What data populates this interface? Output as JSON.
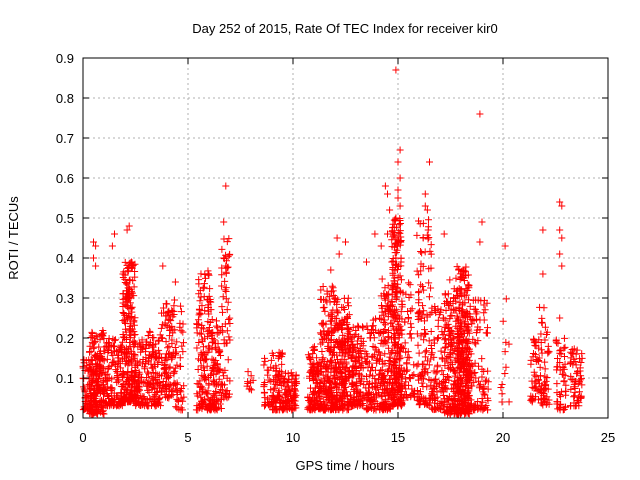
{
  "chart_data": {
    "type": "scatter",
    "title": "Day 252 of 2015, Rate Of TEC Index for receiver kir0",
    "xlabel": "GPS time / hours",
    "ylabel": "ROTI / TECUs",
    "xlim": [
      0,
      25
    ],
    "ylim": [
      0,
      0.9
    ],
    "xticks": [
      0,
      5,
      10,
      15,
      20,
      25
    ],
    "yticks": [
      0,
      0.1,
      0.2,
      0.3,
      0.4,
      0.5,
      0.6,
      0.7,
      0.8,
      0.9
    ],
    "grid": true,
    "marker": "+",
    "color": "#ff0000",
    "clusters": [
      {
        "x": [
          0.0,
          0.3
        ],
        "y": [
          0.02,
          0.15
        ],
        "n": 40
      },
      {
        "x": [
          0.3,
          1.0
        ],
        "y": [
          0.01,
          0.22
        ],
        "n": 220
      },
      {
        "x": [
          1.0,
          1.9
        ],
        "y": [
          0.03,
          0.2
        ],
        "n": 140
      },
      {
        "x": [
          1.9,
          2.5
        ],
        "y": [
          0.04,
          0.4
        ],
        "n": 240
      },
      {
        "x": [
          2.5,
          3.1
        ],
        "y": [
          0.03,
          0.2
        ],
        "n": 90
      },
      {
        "x": [
          3.1,
          3.7
        ],
        "y": [
          0.03,
          0.22
        ],
        "n": 100
      },
      {
        "x": [
          3.7,
          4.4
        ],
        "y": [
          0.05,
          0.3
        ],
        "n": 110
      },
      {
        "x": [
          4.4,
          4.8
        ],
        "y": [
          0.02,
          0.3
        ],
        "n": 40
      },
      {
        "x": [
          5.4,
          6.1
        ],
        "y": [
          0.02,
          0.37
        ],
        "n": 150
      },
      {
        "x": [
          6.1,
          6.6
        ],
        "y": [
          0.02,
          0.25
        ],
        "n": 90
      },
      {
        "x": [
          6.6,
          7.0
        ],
        "y": [
          0.05,
          0.45
        ],
        "n": 60
      },
      {
        "x": [
          7.8,
          8.1
        ],
        "y": [
          0.07,
          0.12
        ],
        "n": 10
      },
      {
        "x": [
          8.6,
          9.0
        ],
        "y": [
          0.03,
          0.15
        ],
        "n": 30
      },
      {
        "x": [
          9.0,
          9.5
        ],
        "y": [
          0.02,
          0.18
        ],
        "n": 80
      },
      {
        "x": [
          9.5,
          10.2
        ],
        "y": [
          0.02,
          0.12
        ],
        "n": 90
      },
      {
        "x": [
          10.7,
          11.3
        ],
        "y": [
          0.02,
          0.18
        ],
        "n": 120
      },
      {
        "x": [
          11.3,
          12.0
        ],
        "y": [
          0.02,
          0.33
        ],
        "n": 200
      },
      {
        "x": [
          12.0,
          12.7
        ],
        "y": [
          0.02,
          0.3
        ],
        "n": 220
      },
      {
        "x": [
          12.7,
          13.4
        ],
        "y": [
          0.03,
          0.23
        ],
        "n": 140
      },
      {
        "x": [
          13.4,
          14.2
        ],
        "y": [
          0.02,
          0.25
        ],
        "n": 120
      },
      {
        "x": [
          14.2,
          14.7
        ],
        "y": [
          0.02,
          0.35
        ],
        "n": 130
      },
      {
        "x": [
          14.7,
          15.2
        ],
        "y": [
          0.03,
          0.5
        ],
        "n": 260
      },
      {
        "x": [
          15.2,
          15.8
        ],
        "y": [
          0.05,
          0.35
        ],
        "n": 60
      },
      {
        "x": [
          15.9,
          16.6
        ],
        "y": [
          0.03,
          0.5
        ],
        "n": 120
      },
      {
        "x": [
          16.6,
          17.2
        ],
        "y": [
          0.02,
          0.28
        ],
        "n": 80
      },
      {
        "x": [
          17.2,
          17.8
        ],
        "y": [
          0.01,
          0.35
        ],
        "n": 150
      },
      {
        "x": [
          17.8,
          18.4
        ],
        "y": [
          0.01,
          0.38
        ],
        "n": 320
      },
      {
        "x": [
          18.4,
          18.8
        ],
        "y": [
          0.02,
          0.3
        ],
        "n": 60
      },
      {
        "x": [
          18.8,
          19.3
        ],
        "y": [
          0.02,
          0.3
        ],
        "n": 50
      },
      {
        "x": [
          19.9,
          20.3
        ],
        "y": [
          0.04,
          0.3
        ],
        "n": 12
      },
      {
        "x": [
          21.3,
          21.7
        ],
        "y": [
          0.04,
          0.2
        ],
        "n": 40
      },
      {
        "x": [
          21.7,
          22.2
        ],
        "y": [
          0.03,
          0.28
        ],
        "n": 60
      },
      {
        "x": [
          22.5,
          23.0
        ],
        "y": [
          0.02,
          0.2
        ],
        "n": 50
      },
      {
        "x": [
          23.2,
          23.8
        ],
        "y": [
          0.03,
          0.18
        ],
        "n": 60
      }
    ],
    "points": [
      [
        0.5,
        0.44
      ],
      [
        0.6,
        0.43
      ],
      [
        0.5,
        0.4
      ],
      [
        0.6,
        0.38
      ],
      [
        1.5,
        0.46
      ],
      [
        1.4,
        0.43
      ],
      [
        2.2,
        0.48
      ],
      [
        2.1,
        0.47
      ],
      [
        3.8,
        0.38
      ],
      [
        4.4,
        0.34
      ],
      [
        6.8,
        0.58
      ],
      [
        6.7,
        0.49
      ],
      [
        6.7,
        0.4
      ],
      [
        6.8,
        0.38
      ],
      [
        6.6,
        0.33
      ],
      [
        11.8,
        0.37
      ],
      [
        12.1,
        0.45
      ],
      [
        12.5,
        0.44
      ],
      [
        12.2,
        0.41
      ],
      [
        13.5,
        0.39
      ],
      [
        13.9,
        0.46
      ],
      [
        14.2,
        0.43
      ],
      [
        14.4,
        0.58
      ],
      [
        14.5,
        0.56
      ],
      [
        14.6,
        0.52
      ],
      [
        14.5,
        0.46
      ],
      [
        14.9,
        0.87
      ],
      [
        15.1,
        0.67
      ],
      [
        15.0,
        0.64
      ],
      [
        15.1,
        0.6
      ],
      [
        15.0,
        0.57
      ],
      [
        15.0,
        0.55
      ],
      [
        15.1,
        0.53
      ],
      [
        14.9,
        0.5
      ],
      [
        15.0,
        0.44
      ],
      [
        14.9,
        0.4
      ],
      [
        16.3,
        0.53
      ],
      [
        16.4,
        0.52
      ],
      [
        16.5,
        0.64
      ],
      [
        16.3,
        0.56
      ],
      [
        16.2,
        0.45
      ],
      [
        17.2,
        0.46
      ],
      [
        18.9,
        0.76
      ],
      [
        19.0,
        0.49
      ],
      [
        18.9,
        0.44
      ],
      [
        20.1,
        0.43
      ],
      [
        21.9,
        0.47
      ],
      [
        21.9,
        0.36
      ],
      [
        22.7,
        0.54
      ],
      [
        22.8,
        0.53
      ],
      [
        22.7,
        0.47
      ],
      [
        22.8,
        0.45
      ],
      [
        22.7,
        0.41
      ],
      [
        22.8,
        0.38
      ],
      [
        22.7,
        0.25
      ]
    ]
  }
}
